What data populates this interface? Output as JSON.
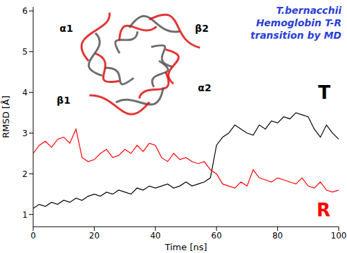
{
  "chart_data": {
    "type": "line",
    "title": "T.bernacchii Hemoglobin T-R transition by MD",
    "x_label": "Time [ns]",
    "y_label": "RMSD [Å]",
    "inset_labels": [
      "α1",
      "β2",
      "β1",
      "α2"
    ],
    "x": [
      0,
      2,
      4,
      6,
      8,
      10,
      12,
      14,
      16,
      18,
      20,
      22,
      24,
      26,
      28,
      30,
      32,
      34,
      36,
      38,
      40,
      42,
      44,
      46,
      48,
      50,
      52,
      54,
      56,
      58,
      60,
      62,
      64,
      66,
      68,
      70,
      72,
      74,
      76,
      78,
      80,
      82,
      84,
      86,
      88,
      90,
      92,
      94,
      96,
      98,
      100
    ],
    "series": [
      {
        "name": "T",
        "color": "#000000",
        "values": [
          1.15,
          1.25,
          1.2,
          1.3,
          1.25,
          1.35,
          1.3,
          1.4,
          1.35,
          1.45,
          1.5,
          1.45,
          1.55,
          1.5,
          1.6,
          1.55,
          1.5,
          1.65,
          1.6,
          1.7,
          1.65,
          1.7,
          1.75,
          1.65,
          1.7,
          1.8,
          1.7,
          1.75,
          1.8,
          1.9,
          2.7,
          2.9,
          3.0,
          3.2,
          3.1,
          3.0,
          2.95,
          3.2,
          3.1,
          3.3,
          3.25,
          3.4,
          3.35,
          3.5,
          3.45,
          3.4,
          3.1,
          2.9,
          3.2,
          3.0,
          2.85
        ]
      },
      {
        "name": "R",
        "color": "#ff0000",
        "values": [
          2.5,
          2.7,
          2.8,
          2.65,
          2.85,
          2.9,
          2.75,
          3.1,
          2.4,
          2.3,
          2.35,
          2.5,
          2.6,
          2.4,
          2.45,
          2.6,
          2.5,
          2.7,
          2.55,
          2.75,
          2.7,
          2.4,
          2.3,
          2.5,
          2.35,
          2.4,
          2.3,
          2.25,
          2.3,
          2.1,
          2.0,
          1.75,
          1.7,
          1.65,
          1.8,
          1.7,
          2.1,
          1.9,
          1.85,
          1.8,
          1.9,
          1.85,
          1.8,
          1.75,
          1.9,
          1.7,
          1.65,
          1.8,
          1.6,
          1.55,
          1.6
        ]
      }
    ],
    "xlim": [
      0,
      100
    ],
    "ylim": [
      0.7,
      6.1
    ],
    "xticks": [
      0,
      20,
      40,
      60,
      80,
      100
    ],
    "yticks": [
      1,
      2,
      3,
      4,
      5,
      6
    ]
  }
}
